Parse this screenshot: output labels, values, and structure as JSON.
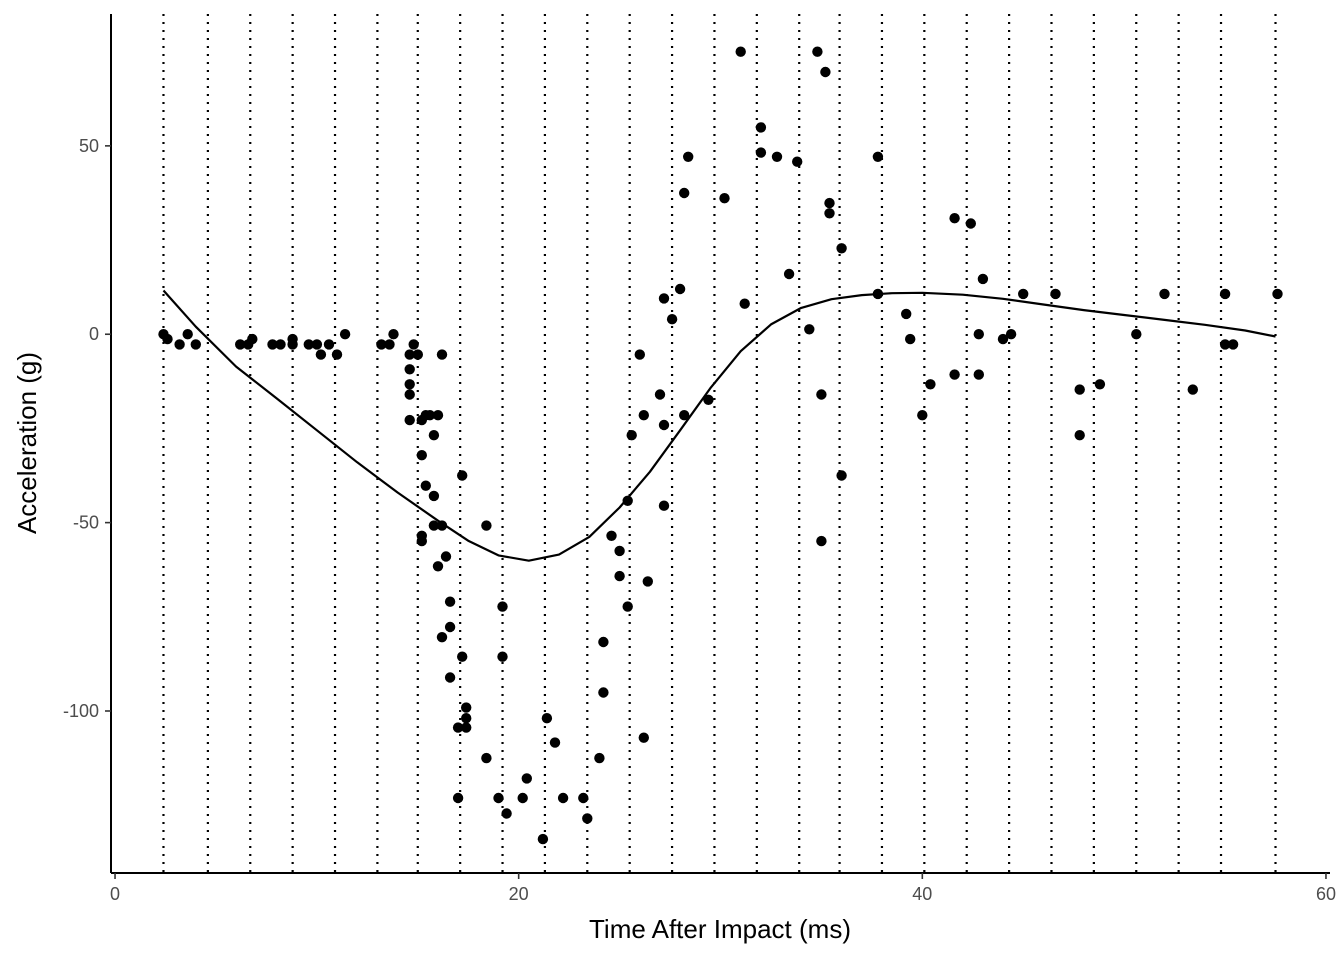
{
  "chart_data": {
    "type": "scatter",
    "title": "",
    "xlabel": "Time After Impact (ms)",
    "ylabel": "Acceleration (g)",
    "xlim": [
      -0.2,
      60.2
    ],
    "ylim": [
      -143,
      85
    ],
    "x_ticks": [
      0,
      20,
      40,
      60
    ],
    "x_tick_labels": [
      "0",
      "20",
      "40",
      "60"
    ],
    "y_ticks": [
      -100,
      -50,
      0,
      50
    ],
    "y_tick_labels": [
      "-100",
      "-50",
      "0",
      "50"
    ],
    "grid": false,
    "legend": "none",
    "point_color": "#000000",
    "line_color": "#000000",
    "knots": [
      2.4,
      4.6,
      6.7,
      8.8,
      10.9,
      13.0,
      15.0,
      17.1,
      19.2,
      21.3,
      23.4,
      25.5,
      27.6,
      29.7,
      31.8,
      33.9,
      35.9,
      38.0,
      40.1,
      42.2,
      44.3,
      46.4,
      48.5,
      50.6,
      52.7,
      54.8,
      57.5
    ],
    "points": [
      [
        2.4,
        0.0
      ],
      [
        2.6,
        -1.3
      ],
      [
        3.2,
        -2.7
      ],
      [
        3.6,
        0.0
      ],
      [
        4.0,
        -2.7
      ],
      [
        6.2,
        -2.7
      ],
      [
        6.6,
        -2.7
      ],
      [
        6.8,
        -1.3
      ],
      [
        7.8,
        -2.7
      ],
      [
        8.2,
        -2.7
      ],
      [
        8.8,
        -1.3
      ],
      [
        8.8,
        -2.7
      ],
      [
        9.6,
        -2.7
      ],
      [
        10.0,
        -2.7
      ],
      [
        10.2,
        -5.4
      ],
      [
        10.6,
        -2.7
      ],
      [
        11.0,
        -5.4
      ],
      [
        11.4,
        0.0
      ],
      [
        13.2,
        -2.7
      ],
      [
        13.6,
        -2.7
      ],
      [
        13.8,
        0.0
      ],
      [
        14.6,
        -5.4
      ],
      [
        14.6,
        -9.3
      ],
      [
        14.6,
        -13.3
      ],
      [
        14.6,
        -16.0
      ],
      [
        14.6,
        -22.8
      ],
      [
        14.8,
        -2.7
      ],
      [
        15.0,
        -5.4
      ],
      [
        15.2,
        -54.9
      ],
      [
        15.2,
        -53.5
      ],
      [
        15.2,
        -32.1
      ],
      [
        15.2,
        -22.8
      ],
      [
        15.4,
        -21.5
      ],
      [
        15.4,
        -40.2
      ],
      [
        15.6,
        -21.5
      ],
      [
        15.8,
        -50.8
      ],
      [
        15.8,
        -26.8
      ],
      [
        15.8,
        -42.9
      ],
      [
        16.0,
        -21.5
      ],
      [
        16.0,
        -61.6
      ],
      [
        16.2,
        -50.8
      ],
      [
        16.2,
        -5.4
      ],
      [
        16.2,
        -80.4
      ],
      [
        16.4,
        -59.0
      ],
      [
        16.6,
        -91.1
      ],
      [
        16.6,
        -77.7
      ],
      [
        16.6,
        -71.0
      ],
      [
        17.0,
        -104.4
      ],
      [
        17.0,
        -123.1
      ],
      [
        17.2,
        -37.5
      ],
      [
        17.2,
        -85.6
      ],
      [
        17.4,
        -101.9
      ],
      [
        17.4,
        -99.1
      ],
      [
        17.4,
        -104.4
      ],
      [
        18.4,
        -112.5
      ],
      [
        18.4,
        -50.8
      ],
      [
        19.0,
        -123.1
      ],
      [
        19.2,
        -85.6
      ],
      [
        19.2,
        -72.3
      ],
      [
        19.4,
        -127.2
      ],
      [
        20.2,
        -123.1
      ],
      [
        20.4,
        -117.9
      ],
      [
        21.2,
        -134.0
      ],
      [
        21.4,
        -101.9
      ],
      [
        21.8,
        -108.4
      ],
      [
        22.2,
        -123.1
      ],
      [
        23.2,
        -123.1
      ],
      [
        23.4,
        -128.5
      ],
      [
        24.0,
        -112.5
      ],
      [
        24.2,
        -95.1
      ],
      [
        24.2,
        -81.7
      ],
      [
        24.6,
        -53.5
      ],
      [
        25.0,
        -64.2
      ],
      [
        25.0,
        -57.5
      ],
      [
        25.4,
        -72.3
      ],
      [
        25.4,
        -44.2
      ],
      [
        25.6,
        -26.8
      ],
      [
        26.0,
        -5.4
      ],
      [
        26.2,
        -107.1
      ],
      [
        26.2,
        -21.5
      ],
      [
        26.4,
        -65.6
      ],
      [
        27.0,
        -16.0
      ],
      [
        27.2,
        -45.5
      ],
      [
        27.2,
        -24.1
      ],
      [
        27.2,
        9.5
      ],
      [
        27.6,
        4.0
      ],
      [
        28.0,
        12.0
      ],
      [
        28.2,
        37.5
      ],
      [
        28.2,
        -21.5
      ],
      [
        28.4,
        47.1
      ],
      [
        29.4,
        -17.4
      ],
      [
        30.2,
        36.1
      ],
      [
        31.0,
        75.0
      ],
      [
        31.2,
        8.1
      ],
      [
        32.0,
        54.9
      ],
      [
        32.0,
        48.2
      ],
      [
        32.8,
        47.1
      ],
      [
        33.4,
        16.0
      ],
      [
        33.8,
        45.8
      ],
      [
        34.4,
        1.3
      ],
      [
        34.8,
        75.0
      ],
      [
        35.0,
        -16.0
      ],
      [
        35.0,
        -54.9
      ],
      [
        35.2,
        69.6
      ],
      [
        35.4,
        32.1
      ],
      [
        35.4,
        34.8
      ],
      [
        36.0,
        22.8
      ],
      [
        36.0,
        -37.5
      ],
      [
        37.8,
        10.7
      ],
      [
        37.8,
        47.1
      ],
      [
        39.2,
        5.4
      ],
      [
        39.4,
        -1.3
      ],
      [
        40.0,
        -21.5
      ],
      [
        40.4,
        -13.3
      ],
      [
        41.6,
        -10.7
      ],
      [
        41.6,
        30.8
      ],
      [
        42.4,
        29.4
      ],
      [
        42.8,
        0.0
      ],
      [
        42.8,
        -10.7
      ],
      [
        43.0,
        14.7
      ],
      [
        44.0,
        -1.3
      ],
      [
        44.4,
        0.0
      ],
      [
        45.0,
        10.7
      ],
      [
        46.6,
        10.7
      ],
      [
        47.8,
        -14.7
      ],
      [
        47.8,
        -26.8
      ],
      [
        48.8,
        -13.3
      ],
      [
        50.6,
        0.0
      ],
      [
        52.0,
        10.7
      ],
      [
        53.4,
        -14.7
      ],
      [
        55.0,
        -2.7
      ],
      [
        55.0,
        10.7
      ],
      [
        55.4,
        -2.7
      ],
      [
        57.6,
        10.7
      ]
    ],
    "smooth_curve": [
      [
        2.4,
        11.6
      ],
      [
        4.0,
        2.0
      ],
      [
        6.0,
        -8.6
      ],
      [
        8.0,
        -17.0
      ],
      [
        10.0,
        -25.5
      ],
      [
        12.0,
        -34.0
      ],
      [
        14.0,
        -42.0
      ],
      [
        16.0,
        -49.5
      ],
      [
        17.5,
        -54.8
      ],
      [
        19.0,
        -58.7
      ],
      [
        20.5,
        -60.1
      ],
      [
        22.0,
        -58.5
      ],
      [
        23.5,
        -53.8
      ],
      [
        25.0,
        -46.0
      ],
      [
        26.5,
        -36.5
      ],
      [
        28.0,
        -25.5
      ],
      [
        29.5,
        -14.3
      ],
      [
        31.0,
        -4.5
      ],
      [
        32.5,
        2.6
      ],
      [
        34.0,
        7.0
      ],
      [
        35.5,
        9.3
      ],
      [
        37.0,
        10.4
      ],
      [
        38.5,
        10.9
      ],
      [
        40.0,
        11.0
      ],
      [
        42.0,
        10.5
      ],
      [
        44.0,
        9.4
      ],
      [
        46.0,
        7.9
      ],
      [
        48.0,
        6.4
      ],
      [
        50.0,
        5.1
      ],
      [
        52.0,
        3.8
      ],
      [
        54.0,
        2.5
      ],
      [
        56.0,
        1.0
      ],
      [
        57.5,
        -0.6
      ]
    ]
  }
}
